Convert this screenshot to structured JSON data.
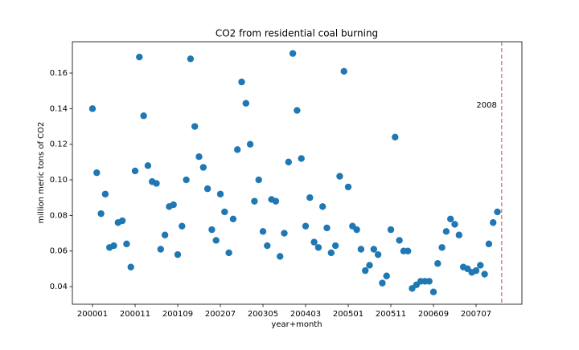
{
  "chart_data": {
    "type": "scatter",
    "title": "CO2 from residential coal burning",
    "xlabel": "year+month",
    "ylabel": "million meric tons of CO2",
    "x": [
      0,
      1,
      2,
      3,
      4,
      5,
      6,
      7,
      8,
      9,
      10,
      11,
      12,
      13,
      14,
      15,
      16,
      17,
      18,
      19,
      20,
      21,
      22,
      23,
      24,
      25,
      26,
      27,
      28,
      29,
      30,
      31,
      32,
      33,
      34,
      35,
      36,
      37,
      38,
      39,
      40,
      41,
      42,
      43,
      44,
      45,
      46,
      47,
      48,
      49,
      50,
      51,
      52,
      53,
      54,
      55,
      56,
      57,
      58,
      59,
      60,
      61,
      62,
      63,
      64,
      65,
      66,
      67,
      68,
      69,
      70,
      71,
      72,
      73,
      74,
      75,
      76,
      77,
      78,
      79,
      80,
      81,
      82,
      83,
      84,
      85,
      86,
      87,
      88,
      89,
      90,
      91,
      92,
      93,
      94,
      95
    ],
    "values": [
      0.14,
      0.104,
      0.081,
      0.092,
      0.062,
      0.063,
      0.076,
      0.077,
      0.064,
      0.051,
      0.105,
      0.169,
      0.136,
      0.108,
      0.099,
      0.098,
      0.061,
      0.069,
      0.085,
      0.086,
      0.058,
      0.074,
      0.1,
      0.168,
      0.13,
      0.113,
      0.107,
      0.095,
      0.072,
      0.066,
      0.092,
      0.082,
      0.059,
      0.078,
      0.117,
      0.155,
      0.143,
      0.12,
      0.088,
      0.1,
      0.071,
      0.063,
      0.089,
      0.088,
      0.057,
      0.07,
      0.11,
      0.171,
      0.139,
      0.112,
      0.074,
      0.09,
      0.065,
      0.062,
      0.085,
      0.073,
      0.059,
      0.063,
      0.102,
      0.161,
      0.096,
      0.074,
      0.072,
      0.061,
      0.049,
      0.052,
      0.061,
      0.058,
      0.042,
      0.046,
      0.072,
      0.124,
      0.066,
      0.06,
      0.06,
      0.039,
      0.041,
      0.043,
      0.043,
      0.043,
      0.037,
      0.053,
      0.062,
      0.071,
      0.078,
      0.075,
      0.069,
      0.051,
      0.05,
      0.048,
      0.049,
      0.052,
      0.047,
      0.064,
      0.076,
      0.082
    ],
    "color": "#1f77b4",
    "xlim": [
      -4.72,
      100.75
    ],
    "xticks": [
      {
        "value": 0,
        "label": "200001"
      },
      {
        "value": 10,
        "label": "200011"
      },
      {
        "value": 20,
        "label": "200109"
      },
      {
        "value": 30,
        "label": "200207"
      },
      {
        "value": 40,
        "label": "200305"
      },
      {
        "value": 50,
        "label": "200403"
      },
      {
        "value": 60,
        "label": "200501"
      },
      {
        "value": 70,
        "label": "200511"
      },
      {
        "value": 80,
        "label": "200609"
      },
      {
        "value": 90,
        "label": "200707"
      }
    ],
    "ylim": [
      0.0301,
      0.1776
    ],
    "yticks": [
      0.04,
      0.06,
      0.08,
      {
        "value": 0.1,
        "label": "0.10"
      },
      0.12,
      0.14,
      0.16
    ],
    "vline": {
      "x": 96,
      "label": "2008",
      "color": "#e8686b"
    }
  }
}
